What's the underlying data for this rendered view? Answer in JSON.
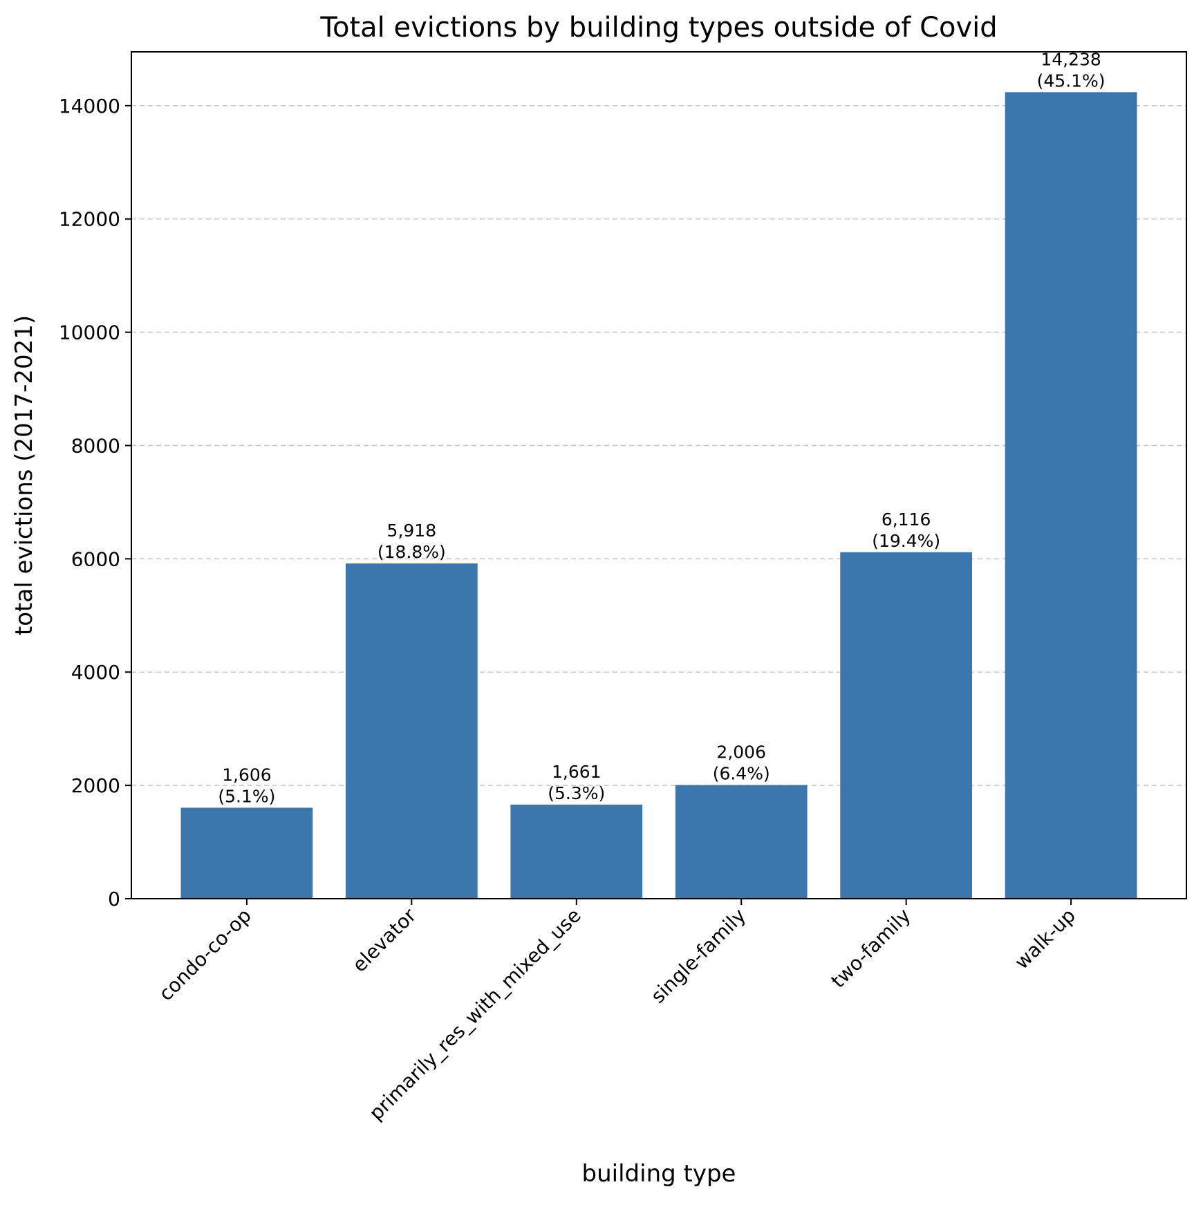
{
  "chart_data": {
    "type": "bar",
    "title": "Total evictions by building types outside of Covid",
    "xlabel": "building type",
    "ylabel": "total evictions (2017-2021)",
    "categories": [
      "condo-co-op",
      "elevator",
      "primarily_res_with_mixed_use",
      "single-family",
      "two-family",
      "walk-up"
    ],
    "values": [
      1606,
      5918,
      1661,
      2006,
      6116,
      14238
    ],
    "value_labels": [
      "1,606",
      "5,918",
      "1,661",
      "2,006",
      "6,116",
      "14,238"
    ],
    "percent_labels": [
      "(5.1%)",
      "(18.8%)",
      "(5.3%)",
      "(6.4%)",
      "(19.4%)",
      "(45.1%)"
    ],
    "ylim": [
      0,
      14950
    ],
    "yticks": [
      0,
      2000,
      4000,
      6000,
      8000,
      10000,
      12000,
      14000
    ],
    "ytick_labels": [
      "0",
      "2000",
      "4000",
      "6000",
      "8000",
      "10000",
      "12000",
      "14000"
    ],
    "grid": "y-dashed",
    "legend": "none",
    "bar_color": "#3b76ad"
  }
}
